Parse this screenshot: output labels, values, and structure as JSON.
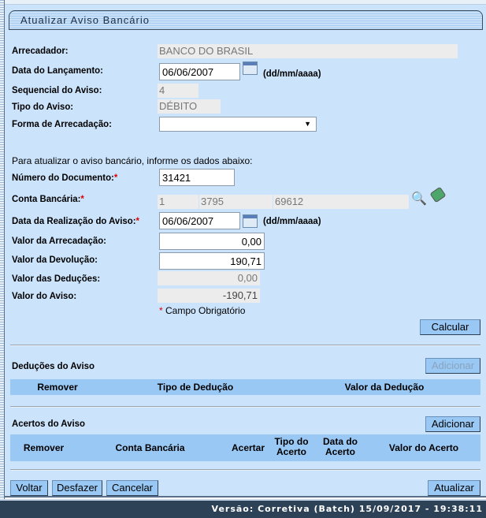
{
  "title": "Atualizar Aviso Bancário",
  "fields": {
    "arrecadador": {
      "label": "Arrecadador:",
      "value": "BANCO DO BRASIL"
    },
    "data_lancamento": {
      "label": "Data do Lançamento:",
      "value": "06/06/2007",
      "hint": "(dd/mm/aaaa)"
    },
    "sequencial": {
      "label": "Sequencial do Aviso:",
      "value": "4"
    },
    "tipo": {
      "label": "Tipo do Aviso:",
      "value": "DÉBITO"
    },
    "forma": {
      "label": "Forma de Arrecadação:",
      "value": ""
    },
    "instructions": "Para atualizar o aviso bancário, informe os dados abaixo:",
    "numero_documento": {
      "label": "Número do Documento:",
      "value": "31421"
    },
    "conta_bancaria": {
      "label": "Conta Bancária:",
      "banco": "1",
      "agencia": "3795",
      "conta": "69612"
    },
    "data_realizacao": {
      "label": "Data da Realização do Aviso:",
      "value": "06/06/2007",
      "hint": "(dd/mm/aaaa)"
    },
    "valor_arrecadacao": {
      "label": "Valor da Arrecadação:",
      "value": "0,00"
    },
    "valor_devolucao": {
      "label": "Valor da Devolução:",
      "value": "190,71"
    },
    "valor_deducoes": {
      "label": "Valor das Deduções:",
      "value": "0,00"
    },
    "valor_aviso": {
      "label": "Valor do Aviso:",
      "value": "-190,71"
    },
    "required_star": "*",
    "required_note": "Campo Obrigatório"
  },
  "buttons": {
    "calcular": "Calcular",
    "adicionar_deducao": "Adicionar",
    "adicionar_acerto": "Adicionar",
    "voltar": "Voltar",
    "desfazer": "Desfazer",
    "cancelar": "Cancelar",
    "atualizar": "Atualizar"
  },
  "deducoes": {
    "title": "Deduções do Aviso",
    "columns": [
      "Remover",
      "Tipo de Dedução",
      "Valor da Dedução"
    ]
  },
  "acertos": {
    "title": "Acertos do Aviso",
    "columns": [
      "Remover",
      "Conta Bancária",
      "Acertar",
      "Tipo do Acerto",
      "Data do Acerto",
      "Valor do Acerto"
    ]
  },
  "footer": "Versão: Corretiva (Batch) 15/09/2017 - 19:38:11"
}
